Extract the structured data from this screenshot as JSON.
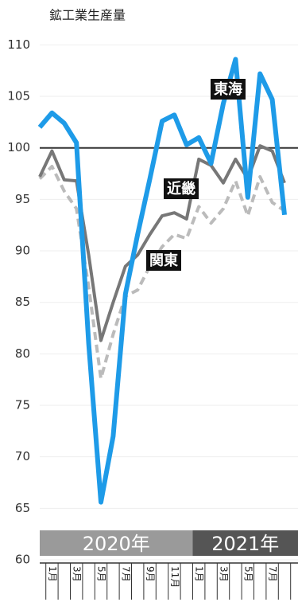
{
  "chart_data": {
    "type": "line",
    "title": "鉱工業生産量",
    "categories": [
      null,
      "1月",
      null,
      "3月",
      null,
      "5月",
      null,
      "7月",
      null,
      "9月",
      null,
      "11月",
      null,
      "1月",
      null,
      "3月",
      null,
      "5月",
      null,
      "7月",
      null
    ],
    "year_labels": [
      "2020年",
      "2021年"
    ],
    "series": [
      {
        "name": "東海",
        "color": "#1e9be8",
        "style": "solid",
        "values": [
          102,
          103.4,
          102.4,
          100.5,
          81,
          65.6,
          72,
          85.8,
          91.6,
          97,
          102.6,
          103.2,
          100.3,
          101,
          98.5,
          104.3,
          108.6,
          95.2,
          107.2,
          104.7,
          93.5
        ]
      },
      {
        "name": "近畿",
        "color": "#777777",
        "style": "solid",
        "values": [
          97.2,
          99.7,
          96.9,
          96.8,
          89.6,
          81.3,
          85,
          88.5,
          89.6,
          91.6,
          93.4,
          93.7,
          93.1,
          98.9,
          98.3,
          96.6,
          98.9,
          97,
          100.2,
          99.7,
          96.6
        ]
      },
      {
        "name": "関東",
        "color": "#bbbbbb",
        "style": "dashed",
        "values": [
          97,
          98.2,
          95.8,
          94.1,
          86.5,
          77.6,
          81.9,
          85.6,
          86.2,
          88.5,
          90.4,
          91.6,
          91.2,
          94.3,
          92.7,
          94.1,
          96.8,
          93.4,
          97.2,
          94.7,
          93.9
        ]
      }
    ],
    "reference_line": 100,
    "ylim": [
      60,
      111.5
    ],
    "yticks": [
      60,
      65,
      70,
      75,
      80,
      85,
      90,
      95,
      100,
      105,
      110
    ],
    "grid": true
  }
}
